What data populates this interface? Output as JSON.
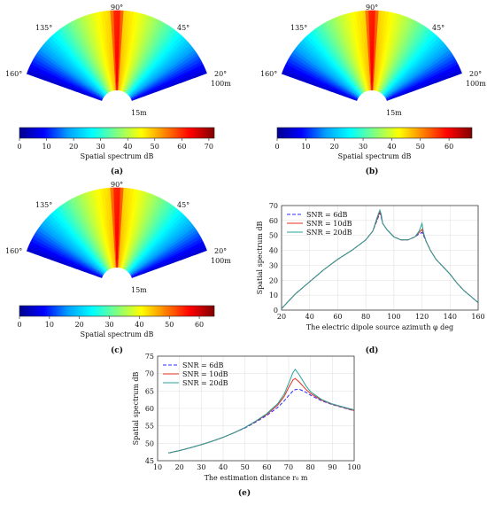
{
  "panels": [
    {
      "id": "a",
      "label": "(a)",
      "angle_labels": [
        "135°",
        "90°",
        "45°",
        "160°",
        "20°"
      ],
      "range_labels": [
        "100m",
        "15m"
      ],
      "colorbar": {
        "label": "Spatial spectrum dB",
        "ticks": [
          "0",
          "10",
          "20",
          "30",
          "40",
          "50",
          "60",
          "70"
        ],
        "max": 72
      }
    },
    {
      "id": "b",
      "label": "(b)",
      "angle_labels": [
        "135°",
        "90°",
        "45°",
        "160°",
        "20°"
      ],
      "range_labels": [
        "100m",
        "15m"
      ],
      "colorbar": {
        "label": "Spatial spectrum dB",
        "ticks": [
          "0",
          "10",
          "20",
          "30",
          "40",
          "50",
          "60"
        ],
        "max": 68
      }
    },
    {
      "id": "c",
      "label": "(c)",
      "angle_labels": [
        "135°",
        "90°",
        "45°",
        "160°",
        "20°"
      ],
      "range_labels": [
        "100m",
        "15m"
      ],
      "colorbar": {
        "label": "Spatial spectrum dB",
        "ticks": [
          "0",
          "10",
          "20",
          "30",
          "40",
          "50",
          "60"
        ],
        "max": 65
      }
    }
  ],
  "colormap": {
    "stops": [
      "#00008f",
      "#0000ff",
      "#00a0ff",
      "#00ffff",
      "#80ff80",
      "#ffff00",
      "#ff8000",
      "#ff0000",
      "#800000"
    ]
  },
  "series_colors": {
    "snr6": "#2b2bff",
    "snr10": "#e0301e",
    "snr20": "#2aa198"
  },
  "chart_data": [
    {
      "type": "line",
      "panel_label": "(d)",
      "xlabel": "The electric dipole source azimuth φ deg",
      "ylabel": "Spatial spectrum dB",
      "xlim": [
        20,
        160
      ],
      "ylim": [
        0,
        70
      ],
      "xticks": [
        "20",
        "40",
        "60",
        "80",
        "100",
        "120",
        "140",
        "160"
      ],
      "yticks": [
        "0",
        "10",
        "20",
        "30",
        "40",
        "50",
        "60",
        "70"
      ],
      "legend_position": "top-left",
      "grid": true,
      "x": [
        20,
        25,
        30,
        40,
        50,
        60,
        70,
        80,
        85,
        88,
        90,
        91,
        92,
        95,
        100,
        105,
        110,
        115,
        118,
        120,
        121,
        123,
        126,
        130,
        135,
        140,
        145,
        150,
        155,
        160
      ],
      "series": [
        {
          "name": "SNR = 6dB",
          "style": "dashed",
          "values": [
            1,
            6,
            11,
            19,
            27,
            34,
            40,
            47,
            53,
            60,
            65,
            62,
            58,
            54,
            49,
            47,
            47,
            49,
            51,
            52,
            50,
            46,
            40,
            34,
            29,
            24,
            18,
            13,
            9,
            5
          ]
        },
        {
          "name": "SNR = 10dB",
          "style": "solid",
          "values": [
            1,
            6,
            11,
            19,
            27,
            34,
            40,
            47,
            53,
            61,
            66,
            63,
            58,
            54,
            49,
            47,
            47,
            49,
            52,
            54,
            51,
            46,
            40,
            34,
            29,
            24,
            18,
            13,
            9,
            5
          ]
        },
        {
          "name": "SNR = 20dB",
          "style": "solid",
          "values": [
            1,
            6,
            11,
            19,
            27,
            34,
            40,
            47,
            53,
            62,
            67,
            64,
            58,
            54,
            49,
            47,
            47,
            49,
            53,
            58,
            52,
            46,
            40,
            34,
            29,
            24,
            18,
            13,
            9,
            5
          ]
        }
      ]
    },
    {
      "type": "line",
      "panel_label": "(e)",
      "xlabel": "The estimation distance r₀ m",
      "ylabel": "Spatial spectrum dB",
      "xlim": [
        10,
        100
      ],
      "ylim": [
        45,
        75
      ],
      "xticks": [
        "10",
        "20",
        "30",
        "40",
        "50",
        "60",
        "70",
        "80",
        "90",
        "100"
      ],
      "yticks": [
        "45",
        "50",
        "55",
        "60",
        "65",
        "70",
        "75"
      ],
      "legend_position": "top-left",
      "grid": true,
      "x": [
        15,
        20,
        25,
        30,
        35,
        40,
        45,
        50,
        55,
        60,
        65,
        68,
        70,
        72,
        73,
        75,
        78,
        80,
        85,
        90,
        95,
        100
      ],
      "series": [
        {
          "name": "SNR = 6dB",
          "style": "dashed",
          "values": [
            47.2,
            47.9,
            48.7,
            49.6,
            50.6,
            51.7,
            53,
            54.4,
            56.1,
            58,
            60.3,
            62.2,
            63.7,
            65,
            65.4,
            65.5,
            64.6,
            63.8,
            62.2,
            61.1,
            60.2,
            59.3
          ]
        },
        {
          "name": "SNR = 10dB",
          "style": "solid",
          "values": [
            47.2,
            47.9,
            48.7,
            49.6,
            50.6,
            51.7,
            53,
            54.5,
            56.3,
            58.3,
            61,
            63.5,
            66,
            68.2,
            68.6,
            67.5,
            65.4,
            64.3,
            62.4,
            61.2,
            60.3,
            59.4
          ]
        },
        {
          "name": "SNR = 20dB",
          "style": "solid",
          "values": [
            47.2,
            47.9,
            48.7,
            49.6,
            50.6,
            51.7,
            53,
            54.5,
            56.4,
            58.5,
            61.4,
            64.2,
            67.2,
            70.3,
            71.2,
            69.5,
            66.4,
            64.8,
            62.6,
            61.3,
            60.4,
            59.6
          ]
        }
      ]
    }
  ]
}
